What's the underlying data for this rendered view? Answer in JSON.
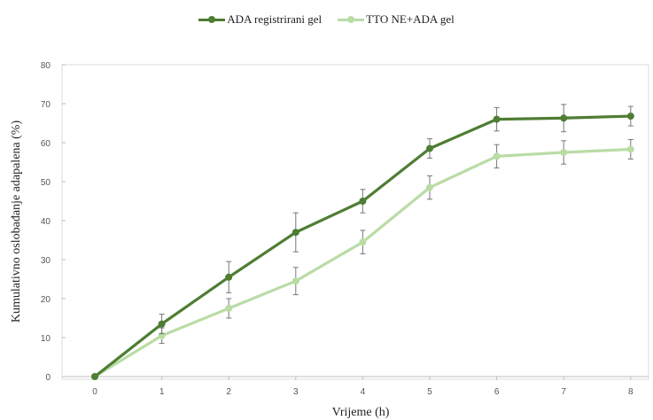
{
  "chart_data": {
    "type": "line",
    "x": [
      0,
      1,
      2,
      3,
      4,
      5,
      6,
      7,
      8
    ],
    "xlabel": "Vrijeme (h)",
    "ylabel": "Kumulativno oslobađanje adapalena (%)",
    "ylim": [
      0,
      80
    ],
    "yticks": [
      0,
      10,
      20,
      30,
      40,
      50,
      60,
      70,
      80
    ],
    "grid": false,
    "legend_position": "top-center",
    "series": [
      {
        "name": "ADA registrirani gel",
        "color": "#4e7d33",
        "values": [
          0,
          13.5,
          25.5,
          37,
          45,
          58.5,
          66,
          66.3,
          66.8
        ],
        "errors": [
          0,
          2.5,
          4,
          5,
          3,
          2.5,
          3,
          3.5,
          2.5
        ]
      },
      {
        "name": "TTO NE+ADA gel",
        "color": "#b9dca5",
        "values": [
          0,
          10.5,
          17.5,
          24.5,
          34.5,
          48.5,
          56.5,
          57.5,
          58.3
        ],
        "errors": [
          0,
          2,
          2.5,
          3.5,
          3,
          3,
          3,
          3,
          2.5
        ]
      }
    ]
  }
}
